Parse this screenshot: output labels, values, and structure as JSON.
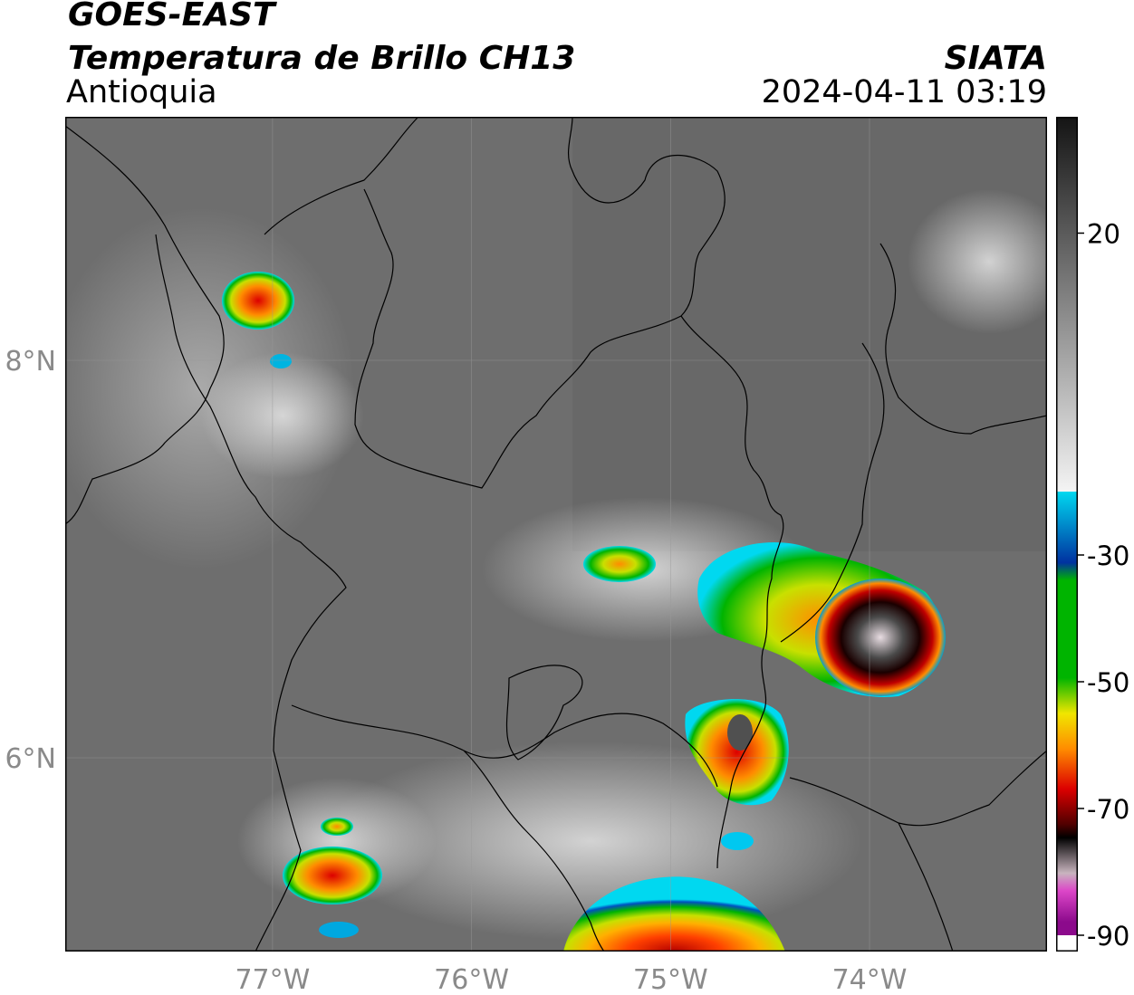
{
  "header": {
    "satellite": "GOES-EAST",
    "product": "Temperatura de Brillo CH13",
    "region": "Antioquia",
    "agency": "SIATA",
    "timestamp": "2024-04-11 03:19"
  },
  "map": {
    "lon_ticks": [
      {
        "value": -77,
        "label": "77°W"
      },
      {
        "value": -76,
        "label": "76°W"
      },
      {
        "value": -75,
        "label": "75°W"
      },
      {
        "value": -74,
        "label": "74°W"
      }
    ],
    "lat_ticks": [
      {
        "value": 8,
        "label": "8°N"
      },
      {
        "value": 6,
        "label": "6°N"
      }
    ],
    "grid": true
  },
  "colorbar": {
    "ticks": [
      {
        "value": 20,
        "label": "20"
      },
      {
        "value": -30,
        "label": "-30"
      },
      {
        "value": -50,
        "label": "-50"
      },
      {
        "value": -70,
        "label": "-70"
      },
      {
        "value": -90,
        "label": "-90"
      }
    ],
    "colors": {
      "warm_dark": "#141414",
      "warm_mid": "#7a7a7a",
      "warm_light": "#f4f4f4",
      "cyan": "#00d8f0",
      "blue": "#0032a0",
      "green": "#00b400",
      "yellow": "#f0e600",
      "orange": "#ff8c00",
      "red": "#dc0000",
      "dark_red": "#500000",
      "black": "#000000",
      "gray_pink": "#c8b4be",
      "magenta": "#dc46c8",
      "purple": "#8c0a8c"
    }
  }
}
